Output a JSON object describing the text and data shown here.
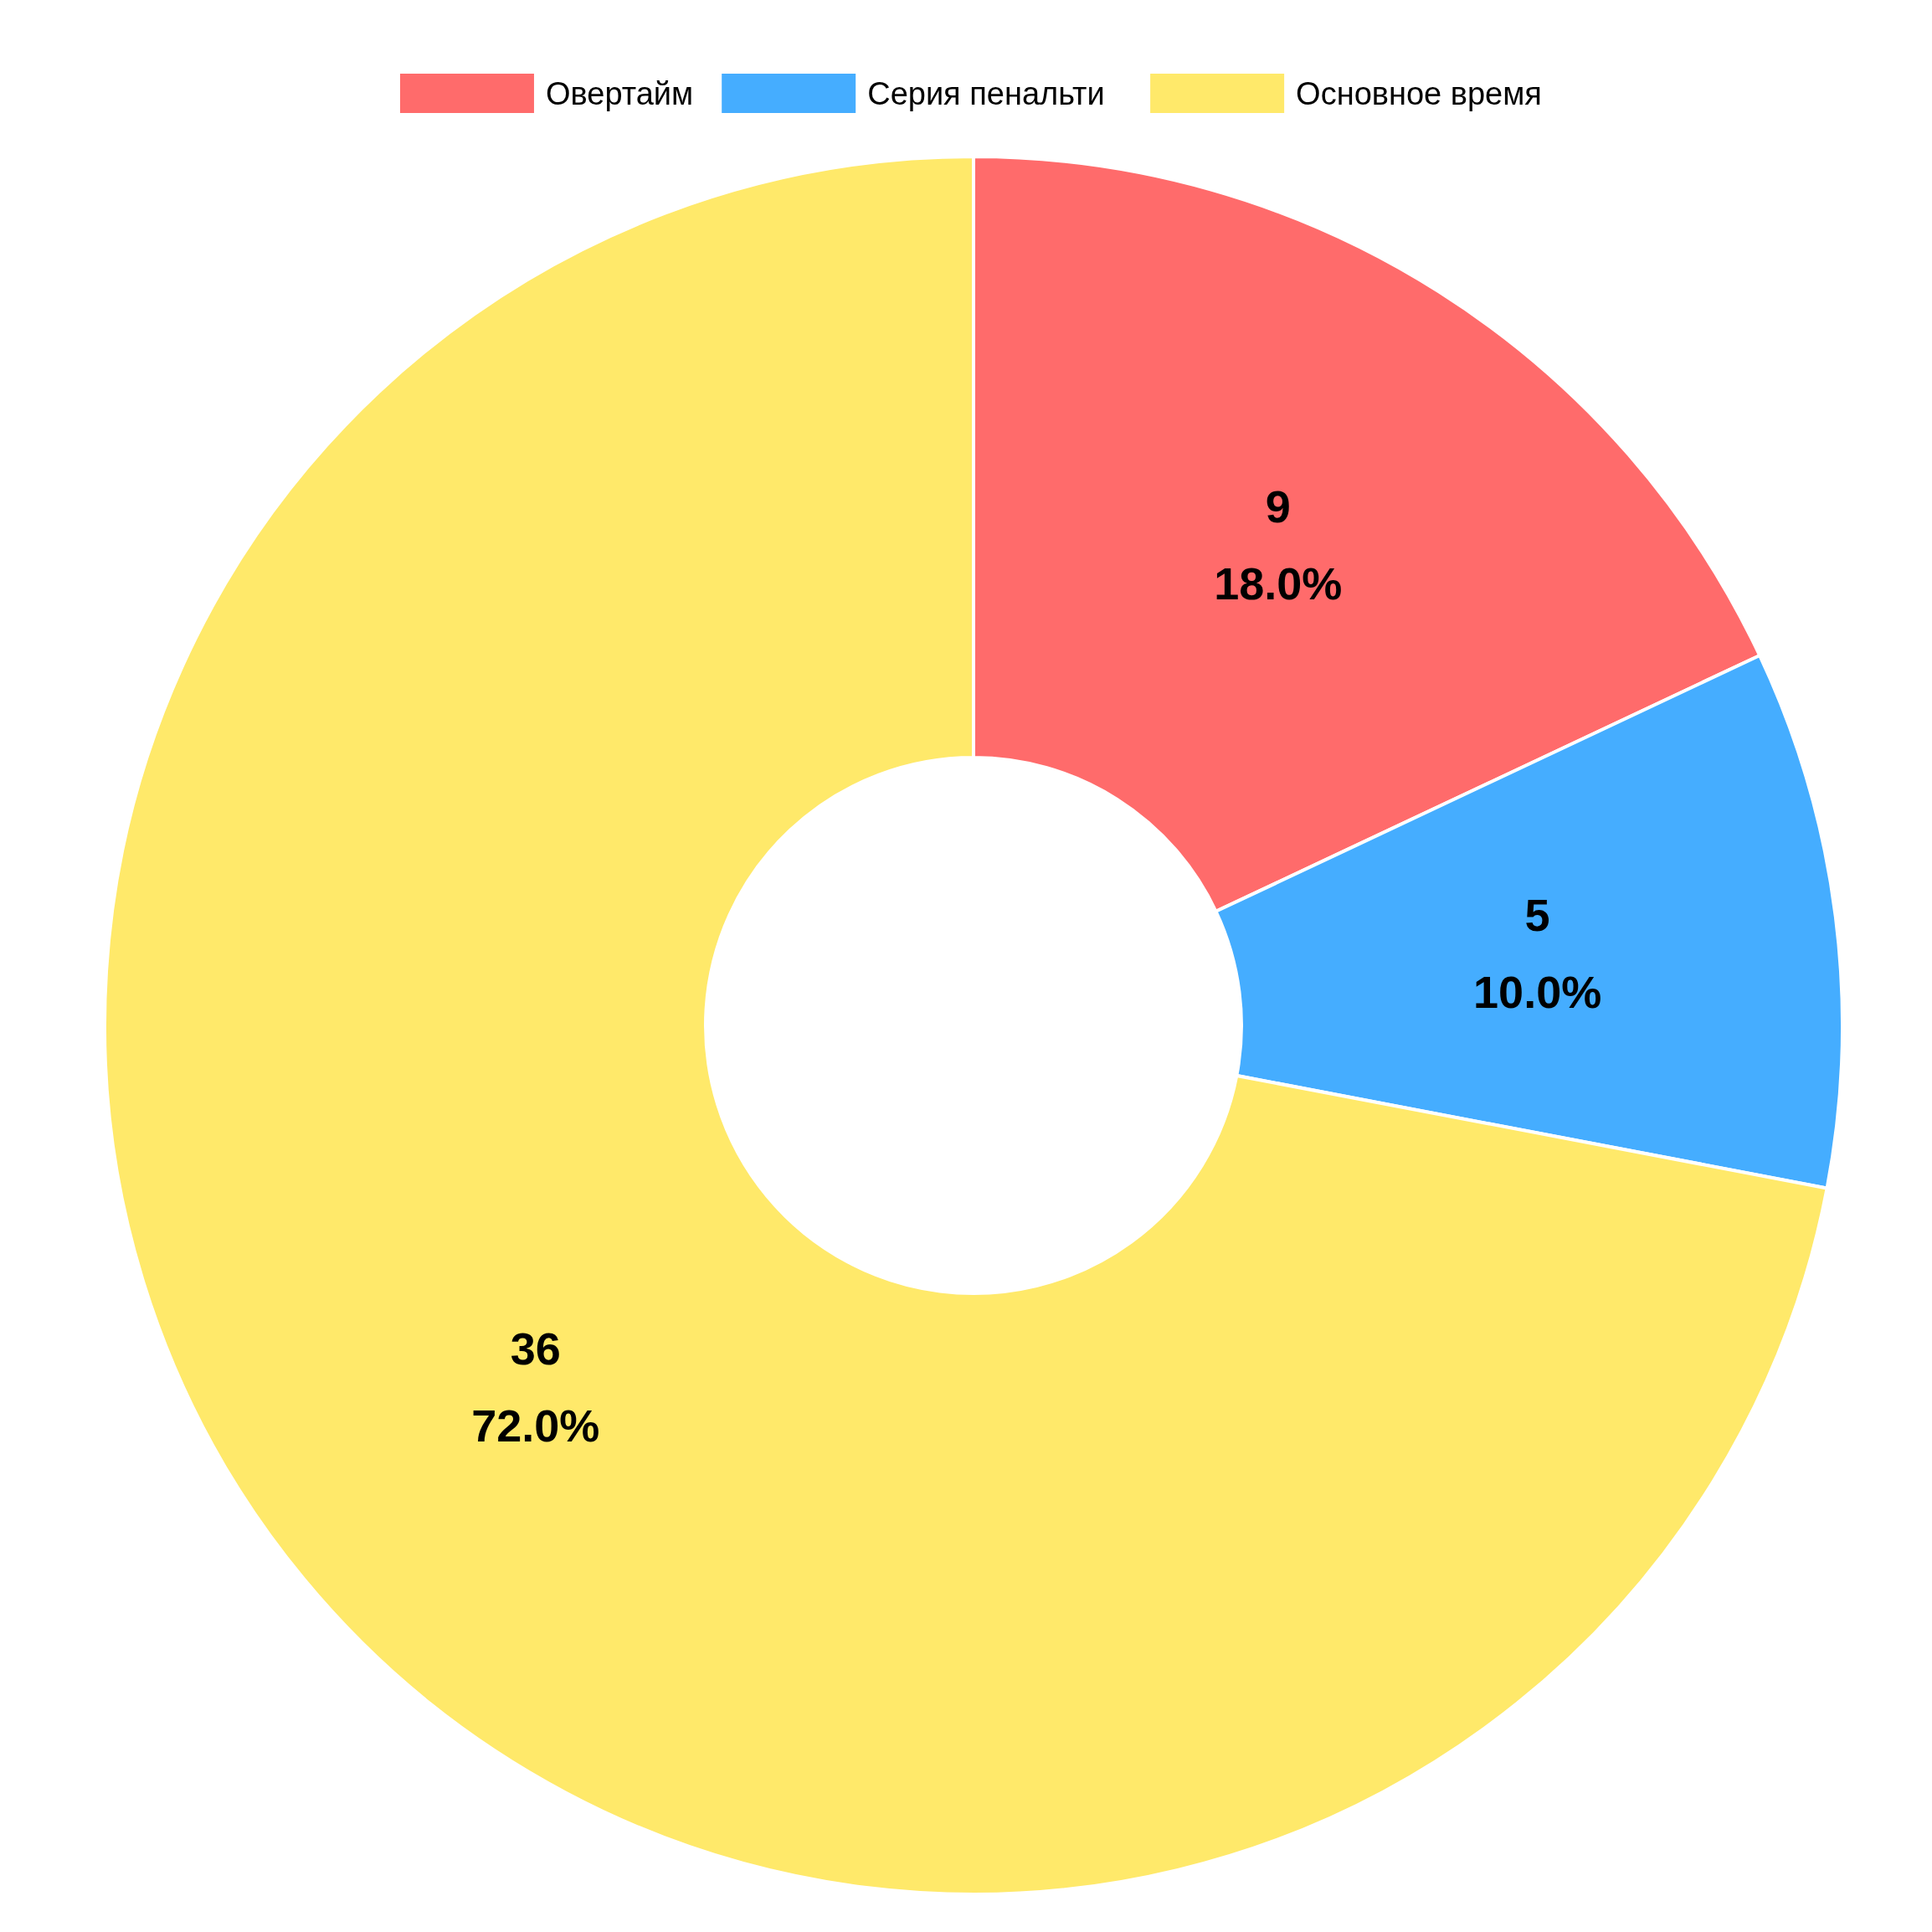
{
  "chart_data": {
    "type": "donut",
    "categories": [
      "Овертайм",
      "Серия пенальти",
      "Основное время"
    ],
    "values": [
      9,
      5,
      36
    ],
    "colors": [
      "#ff6b6b",
      "#45adff",
      "#ffe96a"
    ],
    "value_labels": [
      "9\n18.0%",
      "5\n10.0%",
      "36\n72.0%"
    ],
    "legend": "top"
  }
}
